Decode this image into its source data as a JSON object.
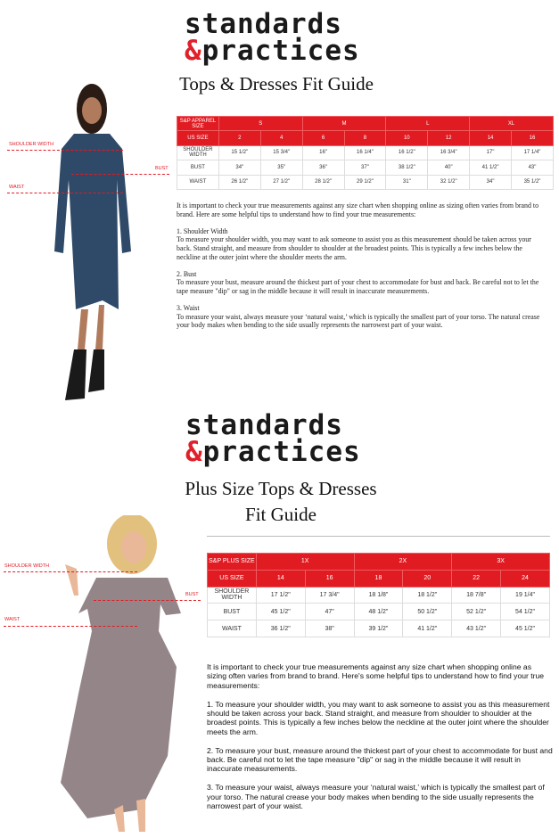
{
  "top": {
    "logo": {
      "line1": "standards",
      "amp": "&",
      "line2": "practices"
    },
    "title": "Tops & Dresses Fit Guide",
    "labels": {
      "shoulder": "SHOULDER WIDTH",
      "bust": "BUST",
      "waist": "WAIST"
    },
    "table": {
      "header1": [
        "S&P APPAREL SIZE",
        "S",
        "M",
        "L",
        "XL"
      ],
      "header2": [
        "US SIZE",
        "2",
        "4",
        "6",
        "8",
        "10",
        "12",
        "14",
        "16"
      ],
      "rows": [
        [
          "SHOULDER WIDTH",
          "15 1/2\"",
          "15 3/4\"",
          "16\"",
          "16 1/4\"",
          "16 1/2\"",
          "16 3/4\"",
          "17\"",
          "17 1/4\""
        ],
        [
          "BUST",
          "34\"",
          "35\"",
          "36\"",
          "37\"",
          "38 1/2\"",
          "40\"",
          "41 1/2\"",
          "43\""
        ],
        [
          "WAIST",
          "26 1/2\"",
          "27 1/2\"",
          "28 1/2\"",
          "29 1/2\"",
          "31\"",
          "32 1/2\"",
          "34\"",
          "35 1/2\""
        ]
      ]
    },
    "text": [
      "It is important to check your true measurements against any size chart when shopping online as sizing often varies from brand to brand. Here are some helpful tips to understand how to find your true measurements:",
      "1. Shoulder Width\nTo measure your shoulder width, you may want to ask someone to assist you as this measurement should be taken across your back. Stand straight, and measure from shoulder to shoulder at the broadest points. This is typically a few inches below the neckline at the outer joint where the shoulder meets the arm.",
      "2. Bust\nTo measure your bust, measure around the thickest part of your chest to accommodate for bust and back. Be careful not to let the tape measure \"dip\" or sag in the middle because it will result in inaccurate measurements.",
      "3. Waist\nTo measure your waist, always measure your ‘natural waist,’ which is typically the smallest part of your torso.  The natural crease your body makes when bending to the side usually represents the narrowest part of your waist."
    ]
  },
  "bottom": {
    "logo": {
      "line1": "standards",
      "amp": "&",
      "line2": "practices"
    },
    "title_line1": "Plus Size Tops & Dresses",
    "title_line2": "Fit Guide",
    "labels": {
      "shoulder": "SHOULDER WIDTH",
      "bust": "BUST",
      "waist": "WAIST"
    },
    "table": {
      "header1": [
        "S&P PLUS SIZE",
        "1X",
        "2X",
        "3X"
      ],
      "header2": [
        "US SIZE",
        "14",
        "16",
        "18",
        "20",
        "22",
        "24"
      ],
      "rows": [
        [
          "SHOULDER WIDTH",
          "17 1/2\"",
          "17 3/4\"",
          "18 1/8\"",
          "18 1/2\"",
          "18 7/8\"",
          "19 1/4\""
        ],
        [
          "BUST",
          "45 1/2\"",
          "47\"",
          "48 1/2\"",
          "50 1/2\"",
          "52 1/2\"",
          "54 1/2\""
        ],
        [
          "WAIST",
          "36 1/2\"",
          "38\"",
          "39 1/2\"",
          "41 1/2\"",
          "43 1/2\"",
          "45 1/2\""
        ]
      ]
    },
    "text": [
      "It is important to check your true measurements against any size chart when shopping online as sizing often varies from brand to brand. Here's some helpful tips to understand how to find your true measurements:",
      "1. To measure your shoulder width, you may want to ask someone to assist you as this measurement should be taken across your back. Stand straight, and measure from shoulder to shoulder at the broadest points. This is typically a few inches below the neckline at the outer joint where the shoulder meets the arm.",
      "2. To measure your bust, measure around the thickest part of your chest to accommodate for bust and back. Be careful not to let the tape measure \"dip\" or sag in the middle because it will result in inaccurate measurements.",
      "3. To measure your waist, always measure your  ‘natural waist,’  which is typically the smallest part of your torso.  The natural crease your body makes when bending to the side usually represents the narrowest part of your waist."
    ]
  },
  "colors": {
    "accent": "#e11b22"
  }
}
